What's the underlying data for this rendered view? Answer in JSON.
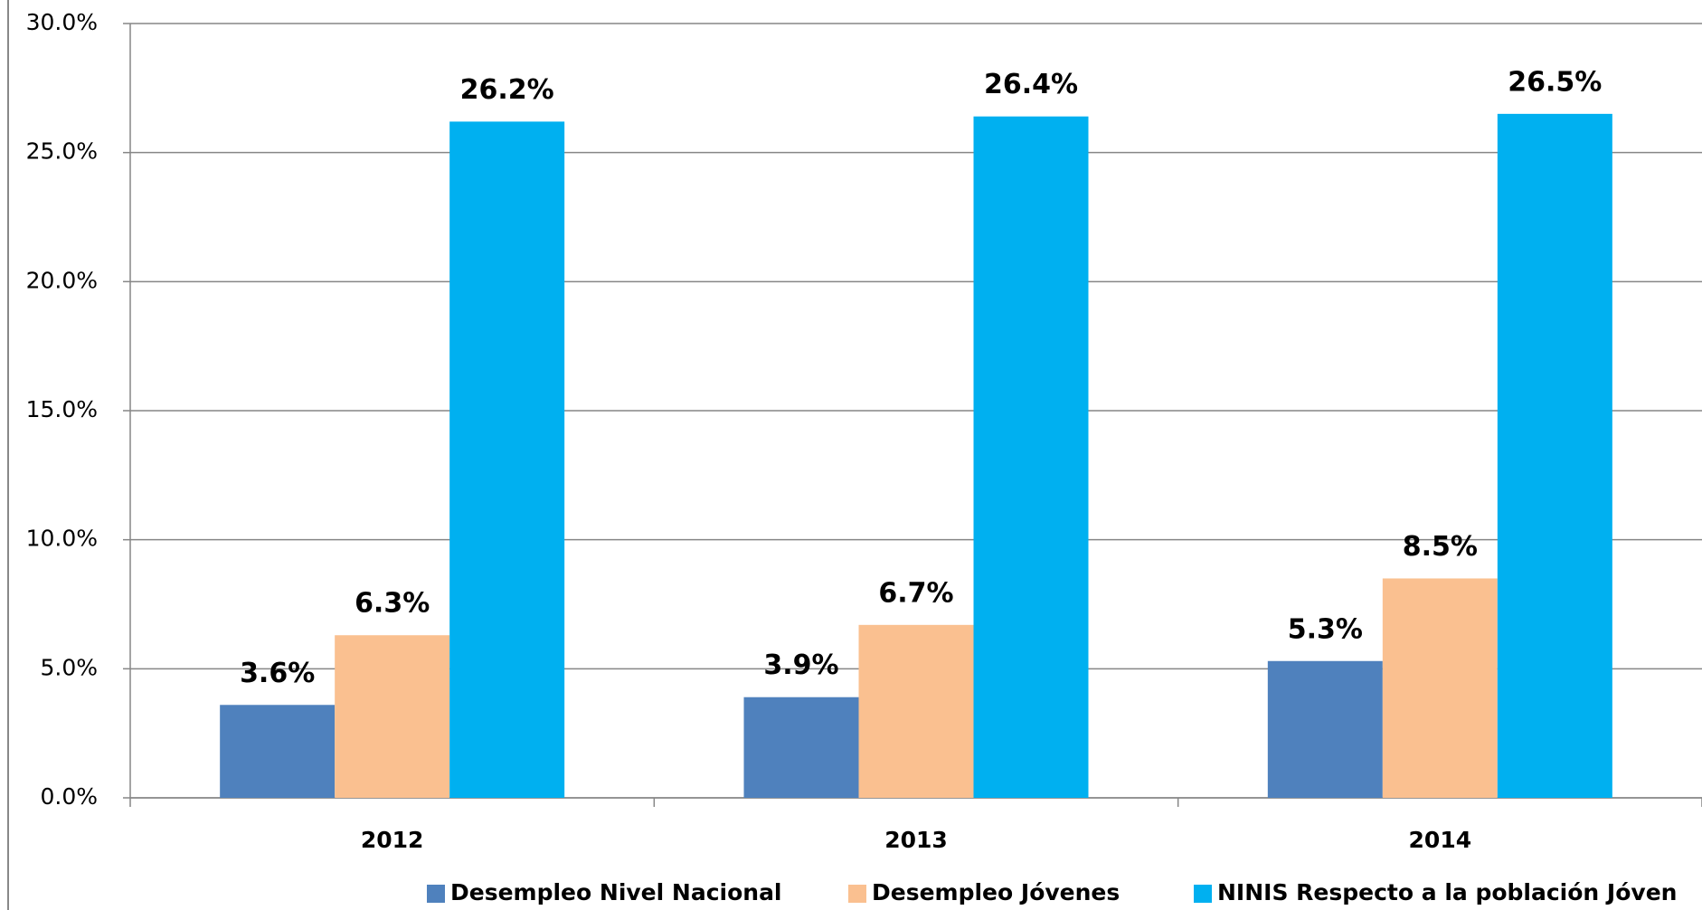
{
  "chart_data": {
    "type": "bar",
    "categories": [
      "2012",
      "2013",
      "2014"
    ],
    "series": [
      {
        "name": "Desempleo Nivel Nacional",
        "color": "#4f81bd",
        "values": [
          3.6,
          3.9,
          5.3
        ],
        "value_labels": [
          "3.6%",
          "3.9%",
          "5.3%"
        ]
      },
      {
        "name": "Desempleo Jóvenes",
        "color": "#fac090",
        "values": [
          6.3,
          6.7,
          8.5
        ],
        "value_labels": [
          "6.3%",
          "6.7%",
          "8.5%"
        ]
      },
      {
        "name": "NINIS Respecto a la población Jóven",
        "color": "#00b0f0",
        "values": [
          26.2,
          26.4,
          26.5
        ],
        "value_labels": [
          "26.2%",
          "26.4%",
          "26.5%"
        ]
      }
    ],
    "ylim": [
      0,
      30
    ],
    "yticks": [
      {
        "value": 0,
        "label": "0.0%"
      },
      {
        "value": 5,
        "label": "5.0%"
      },
      {
        "value": 10,
        "label": "10.0%"
      },
      {
        "value": 15,
        "label": "15.0%"
      },
      {
        "value": 20,
        "label": "20.0%"
      },
      {
        "value": 25,
        "label": "25.0%"
      },
      {
        "value": 30,
        "label": "30.0%"
      }
    ],
    "grid": true,
    "legend": "bottom"
  }
}
